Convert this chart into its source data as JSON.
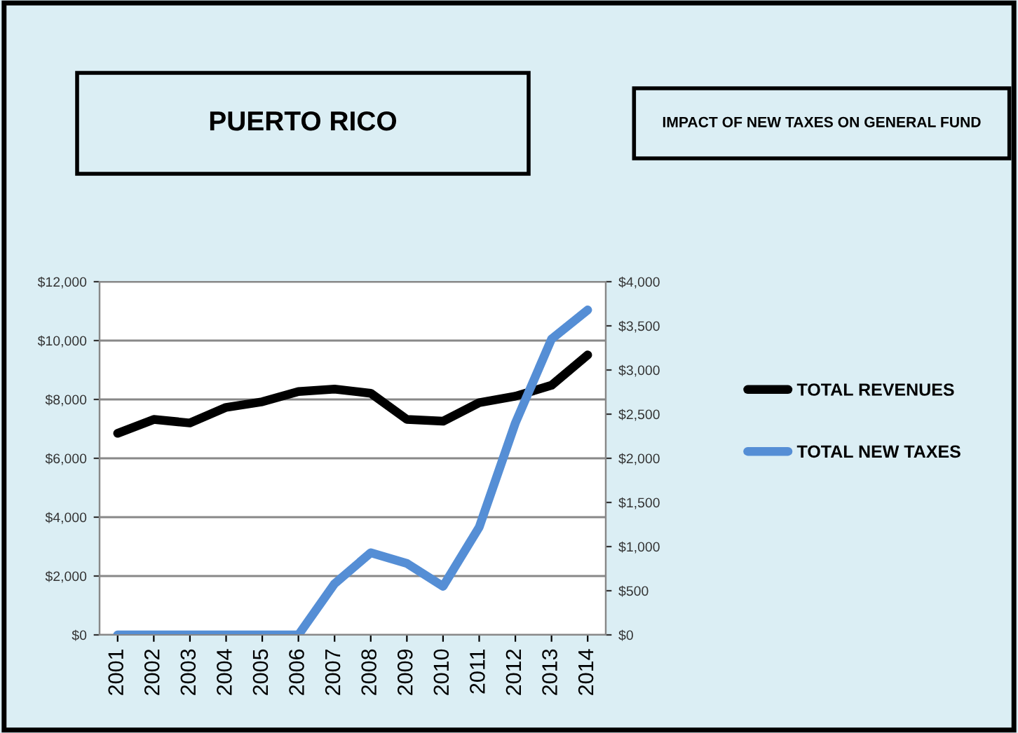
{
  "chart_data": {
    "type": "line",
    "title": "PUERTO RICO",
    "subtitle": "IMPACT OF NEW TAXES ON GENERAL FUND",
    "categories": [
      "2001",
      "2002",
      "2003",
      "2004",
      "2005",
      "2006",
      "2007",
      "2008",
      "2009",
      "2010",
      "2011",
      "2012",
      "2013",
      "2014"
    ],
    "series": [
      {
        "name": "TOTAL REVENUES",
        "color": "#000000",
        "values": [
          6850,
          7320,
          7200,
          7730,
          7920,
          8270,
          8350,
          8210,
          7320,
          7260,
          7890,
          8110,
          8480,
          9510
        ]
      },
      {
        "name": "TOTAL NEW TAXES",
        "color": "#558ed5",
        "axis": "y2",
        "values": [
          0,
          0,
          0,
          0,
          0,
          0,
          580,
          930,
          810,
          550,
          1220,
          2400,
          3350,
          3680
        ]
      }
    ],
    "ylim": [
      0,
      12000
    ],
    "yticks": [
      {
        "value": 0,
        "label": "$0"
      },
      {
        "value": 2000,
        "label": "$2,000"
      },
      {
        "value": 4000,
        "label": "$4,000"
      },
      {
        "value": 6000,
        "label": "$6,000"
      },
      {
        "value": 8000,
        "label": "$8,000"
      },
      {
        "value": 10000,
        "label": "$10,000"
      },
      {
        "value": 12000,
        "label": "$12,000"
      }
    ],
    "y2lim": [
      0,
      4000
    ],
    "y2ticks": [
      {
        "value": 0,
        "label": "$0"
      },
      {
        "value": 500,
        "label": "$500"
      },
      {
        "value": 1000,
        "label": "$1,000"
      },
      {
        "value": 1500,
        "label": "$1,500"
      },
      {
        "value": 2000,
        "label": "$2,000"
      },
      {
        "value": 2500,
        "label": "$2,500"
      },
      {
        "value": 3000,
        "label": "$3,000"
      },
      {
        "value": 3500,
        "label": "$3,500"
      },
      {
        "value": 4000,
        "label": "$4,000"
      }
    ],
    "grid": "y",
    "legend": "right",
    "marker": "none",
    "line_style": "solid"
  }
}
